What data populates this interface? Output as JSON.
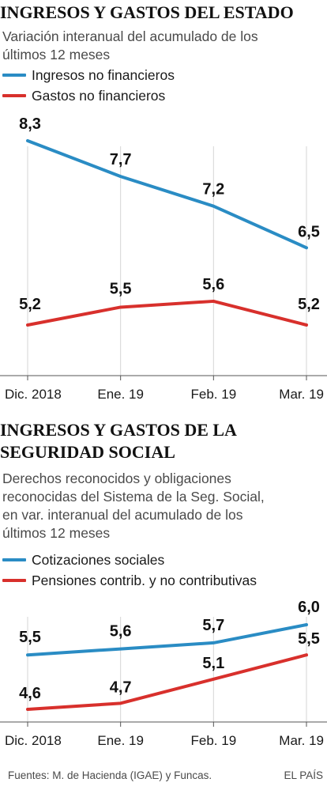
{
  "chart_data": [
    {
      "type": "line",
      "title": "INGRESOS Y GASTOS DEL ESTADO",
      "subtitle": [
        "Variación interanual del acumulado de los",
        "últimos 12 meses"
      ],
      "categories": [
        "Dic. 2018",
        "Ene. 19",
        "Feb. 19",
        "Mar. 19"
      ],
      "series": [
        {
          "name": "Ingresos no financieros",
          "color": "#2a8cc4",
          "values": [
            8.3,
            7.7,
            7.2,
            6.5
          ],
          "labels": [
            "8,3",
            "7,7",
            "7,2",
            "6,5"
          ]
        },
        {
          "name": "Gastos no financieros",
          "color": "#d8302c",
          "values": [
            5.2,
            5.5,
            5.6,
            5.2
          ],
          "labels": [
            "5,2",
            "5,5",
            "5,6",
            "5,2"
          ]
        }
      ],
      "grid": "vertical",
      "legend": "top-left"
    },
    {
      "type": "line",
      "title": [
        "INGRESOS Y GASTOS DE LA",
        "SEGURIDAD SOCIAL"
      ],
      "subtitle": [
        "Derechos reconocidos y obligaciones",
        "reconocidas del Sistema de la Seg. Social,",
        "en var. interanual del acumulado de los",
        "últimos 12 meses"
      ],
      "categories": [
        "Dic. 2018",
        "Ene. 19",
        "Feb. 19",
        "Mar. 19"
      ],
      "series": [
        {
          "name": "Cotizaciones sociales",
          "color": "#2a8cc4",
          "values": [
            5.5,
            5.6,
            5.7,
            6.0
          ],
          "labels": [
            "5,5",
            "5,6",
            "5,7",
            "6,0"
          ]
        },
        {
          "name": "Pensiones contrib. y no contributivas",
          "color": "#d8302c",
          "values": [
            4.6,
            4.7,
            5.1,
            5.5
          ],
          "labels": [
            "4,6",
            "4,7",
            "5,1",
            "5,5"
          ]
        }
      ],
      "grid": "vertical",
      "legend": "top-left"
    }
  ],
  "footer": {
    "source": "Fuentes: M. de Hacienda (IGAE) y Funcas.",
    "brand": "EL PAÍS"
  }
}
